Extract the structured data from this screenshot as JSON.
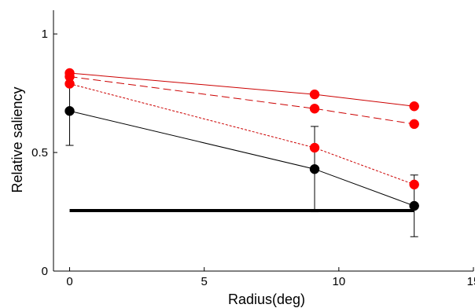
{
  "chart_data": {
    "type": "line",
    "title": "",
    "xlabel": "Radius(deg)",
    "ylabel": "Relative saliency",
    "xlim": [
      -0.6,
      15
    ],
    "ylim": [
      0,
      1.1
    ],
    "xticks": [
      0,
      5,
      10,
      15
    ],
    "xtick_labels": [
      "0",
      "5",
      "10",
      "15"
    ],
    "yticks": [
      0,
      0.5,
      1
    ],
    "ytick_labels": [
      "0",
      "0.5",
      "1"
    ],
    "grid": false,
    "legend": "none",
    "colors": {
      "red": "#ff0000",
      "dark_red": "#cc0000",
      "black": "#000000"
    },
    "series": [
      {
        "style": "solid",
        "color": "#cc0000",
        "marker_color": "#ff0000",
        "x": [
          0,
          9.1,
          12.8
        ],
        "y": [
          0.835,
          0.745,
          0.695
        ]
      },
      {
        "style": "dashed",
        "color": "#cc0000",
        "marker_color": "#ff0000",
        "x": [
          0,
          9.1,
          12.8
        ],
        "y": [
          0.82,
          0.685,
          0.62
        ]
      },
      {
        "style": "dotted",
        "color": "#cc0000",
        "marker_color": "#ff0000",
        "x": [
          0,
          9.1,
          12.8
        ],
        "y": [
          0.79,
          0.52,
          0.365
        ]
      },
      {
        "style": "solid",
        "color": "#000000",
        "marker_color": "#000000",
        "x": [
          0,
          9.1,
          12.8
        ],
        "y": [
          0.675,
          0.43,
          0.275
        ],
        "error": [
          0.145,
          0.18,
          0.13
        ]
      }
    ],
    "reference_line": {
      "y": 0.255,
      "x": [
        0,
        12.8
      ],
      "color": "#000000"
    }
  }
}
